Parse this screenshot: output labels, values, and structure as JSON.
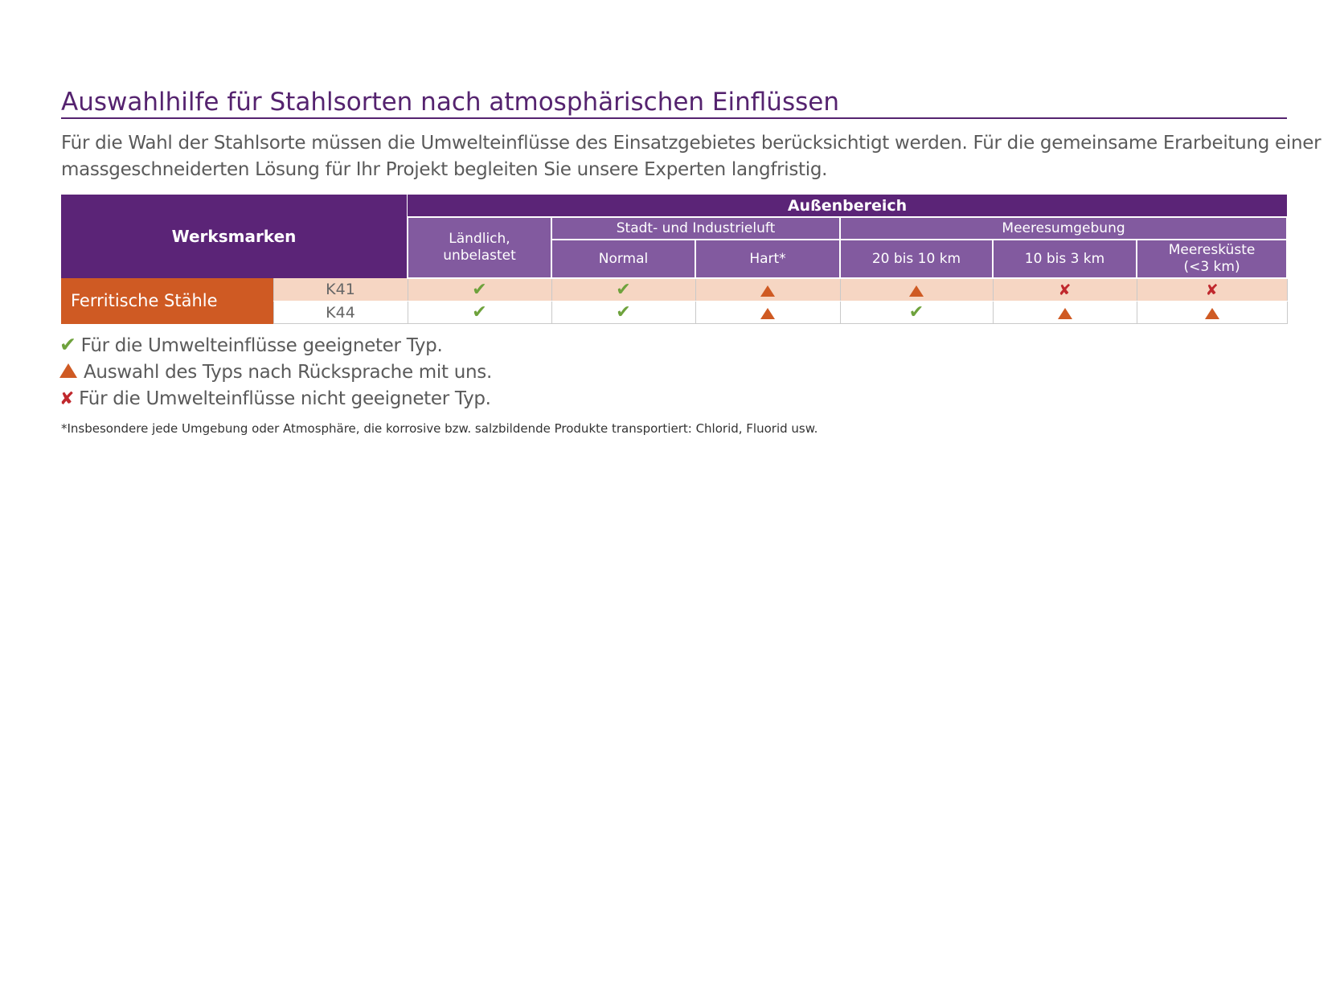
{
  "title": "Auswahlhilfe für Stahlsorten nach atmosphärischen Einflüssen",
  "intro": {
    "line1": "Für die Wahl der Stahlsorte müssen die Umwelteinflüsse des Einsatzgebietes berücksichtigt werden. Für die gemeinsame Erarbeitung einer",
    "line2": "massgeschneiderten Lösung für Ihr Projekt begleiten Sie unsere Experten langfristig."
  },
  "table": {
    "brand_header": "Werksmarken",
    "top_header": "Außenbereich",
    "col_rural": {
      "line1": "Ländlich,",
      "line2": "unbelastet"
    },
    "group_city": "Stadt- und Industrieluft",
    "group_sea": "Meeresumgebung",
    "col_normal": "Normal",
    "col_hard": "Hart*",
    "col_20_10": "20 bis 10 km",
    "col_10_3": "10 bis 3 km",
    "col_coast": {
      "line1": "Meeresküste",
      "line2": "(<3 km)"
    },
    "group_label": "Ferritische Stähle",
    "rows": [
      {
        "grade": "K41",
        "ratings": [
          "suitable",
          "suitable",
          "consult",
          "consult",
          "unsuitable",
          "unsuitable"
        ]
      },
      {
        "grade": "K44",
        "ratings": [
          "suitable",
          "suitable",
          "consult",
          "suitable",
          "consult",
          "consult"
        ]
      }
    ]
  },
  "legend": {
    "suitable": "Für die Umwelteinflüsse geeigneter Typ.",
    "consult": "Auswahl des Typs nach Rücksprache mit uns.",
    "unsuitable": "Für die Umwelteinflüsse nicht geeigneter Typ."
  },
  "footnote": "*Insbesondere jede Umgebung oder Atmosphäre, die korrosive bzw. salzbildende Produkte transportiert: Chlorid, Fluorid usw.",
  "colors": {
    "purple": "#5b2477",
    "purple_light": "#825a9f",
    "orange": "#cf5a23",
    "peach": "#f6d6c3",
    "green": "#6ea23c",
    "red": "#c0282d"
  },
  "icons": {
    "suitable": "check-icon",
    "consult": "warning-triangle-icon",
    "unsuitable": "cross-icon"
  }
}
